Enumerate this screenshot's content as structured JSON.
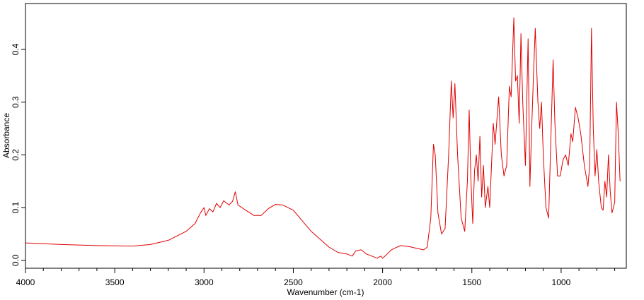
{
  "chart_data": {
    "type": "line",
    "xlabel": "Wavenumber (cm-1)",
    "ylabel": "Absorbance",
    "color": "#e00000",
    "xlim": [
      4000,
      635
    ],
    "ylim": [
      -0.015,
      0.487
    ],
    "xticks": [
      4000,
      3500,
      3000,
      2500,
      2000,
      1500,
      1000
    ],
    "xminorticks": [
      3900,
      3800,
      3700,
      3600,
      3400,
      3300,
      3200,
      3100,
      2900,
      2800,
      2700,
      2600,
      2400,
      2300,
      2200,
      2100,
      1900,
      1800,
      1700,
      1600,
      1400,
      1300,
      1200,
      1100,
      900,
      800,
      700
    ],
    "yticks": [
      {
        "value": 0,
        "label": "0.0"
      },
      0.1,
      0.2,
      0.3,
      0.4
    ],
    "x": [
      4000,
      3800,
      3600,
      3400,
      3300,
      3200,
      3100,
      3050,
      3020,
      3000,
      2990,
      2970,
      2950,
      2930,
      2910,
      2890,
      2860,
      2840,
      2825,
      2810,
      2780,
      2720,
      2680,
      2640,
      2600,
      2560,
      2500,
      2450,
      2400,
      2350,
      2300,
      2250,
      2200,
      2170,
      2150,
      2120,
      2090,
      2060,
      2030,
      2010,
      2000,
      1980,
      1950,
      1900,
      1850,
      1800,
      1770,
      1750,
      1730,
      1715,
      1705,
      1690,
      1670,
      1650,
      1630,
      1615,
      1605,
      1595,
      1580,
      1560,
      1540,
      1525,
      1515,
      1505,
      1495,
      1485,
      1475,
      1465,
      1455,
      1445,
      1435,
      1425,
      1410,
      1400,
      1380,
      1370,
      1350,
      1335,
      1320,
      1305,
      1290,
      1280,
      1265,
      1255,
      1245,
      1235,
      1225,
      1215,
      1200,
      1185,
      1175,
      1165,
      1155,
      1145,
      1130,
      1120,
      1110,
      1100,
      1085,
      1070,
      1060,
      1045,
      1035,
      1020,
      1005,
      990,
      975,
      960,
      945,
      935,
      920,
      905,
      890,
      870,
      850,
      840,
      830,
      820,
      810,
      800,
      790,
      775,
      765,
      755,
      745,
      735,
      725,
      715,
      700,
      690,
      680,
      670
    ],
    "values": [
      0.033,
      0.03,
      0.028,
      0.027,
      0.03,
      0.038,
      0.055,
      0.07,
      0.09,
      0.1,
      0.085,
      0.098,
      0.092,
      0.108,
      0.1,
      0.113,
      0.105,
      0.112,
      0.13,
      0.105,
      0.098,
      0.085,
      0.085,
      0.098,
      0.106,
      0.105,
      0.095,
      0.075,
      0.055,
      0.04,
      0.025,
      0.015,
      0.012,
      0.008,
      0.018,
      0.02,
      0.012,
      0.008,
      0.004,
      0.008,
      0.004,
      0.01,
      0.02,
      0.028,
      0.026,
      0.022,
      0.02,
      0.025,
      0.08,
      0.22,
      0.2,
      0.09,
      0.05,
      0.06,
      0.2,
      0.34,
      0.27,
      0.335,
      0.2,
      0.08,
      0.055,
      0.15,
      0.285,
      0.15,
      0.07,
      0.17,
      0.2,
      0.15,
      0.235,
      0.12,
      0.18,
      0.1,
      0.14,
      0.1,
      0.26,
      0.22,
      0.31,
      0.2,
      0.16,
      0.18,
      0.33,
      0.31,
      0.46,
      0.34,
      0.35,
      0.26,
      0.43,
      0.3,
      0.18,
      0.42,
      0.14,
      0.25,
      0.35,
      0.44,
      0.3,
      0.25,
      0.3,
      0.2,
      0.1,
      0.08,
      0.2,
      0.38,
      0.26,
      0.16,
      0.16,
      0.19,
      0.2,
      0.18,
      0.24,
      0.225,
      0.29,
      0.27,
      0.24,
      0.18,
      0.14,
      0.18,
      0.44,
      0.25,
      0.16,
      0.21,
      0.15,
      0.1,
      0.095,
      0.15,
      0.12,
      0.2,
      0.13,
      0.09,
      0.11,
      0.3,
      0.24,
      0.15
    ]
  }
}
